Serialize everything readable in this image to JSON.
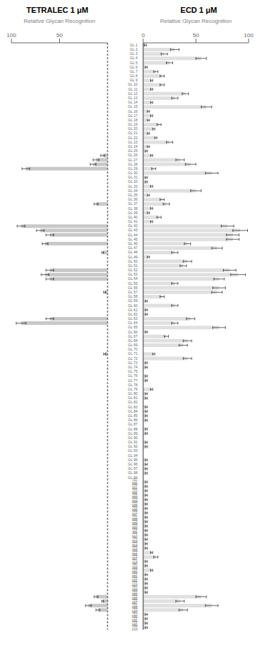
{
  "chart_data": [
    {
      "type": "bar",
      "orientation": "horizontal",
      "title": "TETRALEC 1 μM",
      "xlabel": "Relative Glycan Recognition",
      "tick_labels": "x",
      "categories": [
        "GL 1",
        "GL 2",
        "GL 3",
        "GL 4",
        "GL 5",
        "GL 6",
        "GL 7",
        "GL 8",
        "GL 9",
        "GL 10",
        "GL 11",
        "GL 12",
        "GL 13",
        "GL 14",
        "GL 15",
        "GL 16",
        "GL 17",
        "GL 18",
        "GL 19",
        "GL 20",
        "GL 21",
        "GL 22",
        "GL 23",
        "GL 24",
        "GL 25",
        "GL 26",
        "GL 27",
        "GL 28",
        "GL 29",
        "GL 30",
        "GL 31",
        "GL 32",
        "GL 33",
        "GL 34",
        "GL 35",
        "GL 36",
        "GL 37",
        "GL 38",
        "GL 39",
        "GL 40",
        "GL 41",
        "GL 42",
        "GL 43",
        "GL 44",
        "GL 45",
        "GL 46",
        "GL 47",
        "GL 48",
        "GL 49",
        "GL 50",
        "GL 51",
        "GL 52",
        "GL 53",
        "GL 54",
        "GL 55",
        "GL 56",
        "GL 57",
        "GL 58",
        "GL 59",
        "GL 60",
        "GL 61",
        "GL 62",
        "GL 63",
        "GL 64",
        "GL 65",
        "GL 66",
        "GL 67",
        "GL 68",
        "GL 69",
        "GL 70",
        "GL 71",
        "GL 72",
        "GL 73",
        "GL 74",
        "GL 75",
        "GL 76",
        "GL 77",
        "GL 78",
        "GL 79",
        "GL 80",
        "GL 81",
        "GL 82",
        "GL 83",
        "GL 84",
        "GL 85",
        "GL 86",
        "GL 87",
        "GL 88",
        "GL 89",
        "GL 90",
        "GL 91",
        "GL 92",
        "GL 93",
        "GL 94",
        "GL 95",
        "GL 96",
        "GL 97",
        "GL 98",
        "GL 99",
        "GL 100",
        "GL 101",
        "GL 102",
        "GL 103",
        "GL 104",
        "GL 105",
        "GL 106",
        "GL 107",
        "GL 108",
        "GL 109",
        "GL 110",
        "GL 111",
        "GL 112",
        "GL 113",
        "GL 114",
        "GL 115",
        "GL 116",
        "GL 117",
        "GL 118",
        "GL 119",
        "GL 120",
        "GL 121",
        "GL 122",
        "GL 123",
        "GL 124",
        "GL 125",
        "GL 126",
        "GL 127",
        "GL 128",
        "GL 129",
        "GL 130",
        "GL 131",
        "GL 132",
        "GL 133"
      ],
      "values": [
        0,
        0,
        0,
        0,
        0,
        0,
        0,
        0,
        0,
        0,
        0,
        0,
        0,
        0,
        0,
        0,
        0,
        0,
        0,
        0,
        0,
        0,
        0,
        0,
        0,
        5,
        12,
        15,
        85,
        0,
        0,
        0,
        0,
        0,
        0,
        0,
        12,
        0,
        0,
        0,
        0,
        90,
        70,
        60,
        0,
        65,
        0,
        5,
        0,
        0,
        0,
        60,
        65,
        60,
        0,
        0,
        3,
        0,
        0,
        0,
        0,
        0,
        60,
        90,
        0,
        0,
        0,
        0,
        0,
        0,
        3,
        0,
        0,
        0,
        0,
        0,
        0,
        0,
        0,
        0,
        0,
        0,
        0,
        0,
        0,
        0,
        0,
        0,
        0,
        0,
        0,
        0,
        0,
        0,
        0,
        0,
        0,
        0,
        0,
        0,
        0,
        0,
        0,
        0,
        0,
        0,
        0,
        0,
        0,
        0,
        0,
        0,
        0,
        0,
        0,
        0,
        0,
        0,
        0,
        0,
        0,
        0,
        0,
        0,
        0,
        12,
        5,
        20,
        10,
        0,
        0,
        0,
        0
      ],
      "errors": [
        0,
        0,
        0,
        0,
        0,
        0,
        0,
        0,
        0,
        0,
        0,
        0,
        0,
        0,
        0,
        0,
        0,
        0,
        0,
        0,
        0,
        0,
        0,
        0,
        0,
        2,
        3,
        3,
        4,
        0,
        0,
        0,
        0,
        0,
        0,
        0,
        2,
        0,
        0,
        0,
        0,
        4,
        4,
        4,
        0,
        3,
        0,
        1,
        0,
        0,
        0,
        4,
        4,
        4,
        0,
        0,
        1,
        0,
        0,
        0,
        0,
        0,
        4,
        5,
        0,
        0,
        0,
        0,
        0,
        0,
        1,
        0,
        0,
        0,
        0,
        0,
        0,
        0,
        0,
        0,
        0,
        0,
        0,
        0,
        0,
        0,
        0,
        0,
        0,
        0,
        0,
        0,
        0,
        0,
        0,
        0,
        0,
        0,
        0,
        0,
        0,
        0,
        0,
        0,
        0,
        0,
        0,
        0,
        0,
        0,
        0,
        0,
        0,
        0,
        0,
        0,
        0,
        0,
        0,
        0,
        0,
        0,
        0,
        0,
        0,
        2,
        1,
        3,
        2,
        0,
        0,
        0,
        0
      ],
      "color": "#c8c8c8",
      "xlim": [
        100,
        0
      ],
      "xticks": [
        100,
        50
      ]
    },
    {
      "type": "bar",
      "orientation": "horizontal",
      "title": "ECD 1 μM",
      "xlabel": "Relative Glycan Recognition",
      "categories": [
        "GL 1",
        "GL 2",
        "GL 3",
        "GL 4",
        "GL 5",
        "GL 6",
        "GL 7",
        "GL 8",
        "GL 9",
        "GL 10",
        "GL 11",
        "GL 12",
        "GL 13",
        "GL 14",
        "GL 15",
        "GL 16",
        "GL 17",
        "GL 18",
        "GL 19",
        "GL 20",
        "GL 21",
        "GL 22",
        "GL 23",
        "GL 24",
        "GL 25",
        "GL 26",
        "GL 27",
        "GL 28",
        "GL 29",
        "GL 30",
        "GL 31",
        "GL 32",
        "GL 33",
        "GL 34",
        "GL 35",
        "GL 36",
        "GL 37",
        "GL 38",
        "GL 39",
        "GL 40",
        "GL 41",
        "GL 42",
        "GL 43",
        "GL 44",
        "GL 45",
        "GL 46",
        "GL 47",
        "GL 48",
        "GL 49",
        "GL 50",
        "GL 51",
        "GL 52",
        "GL 53",
        "GL 54",
        "GL 55",
        "GL 56",
        "GL 57",
        "GL 58",
        "GL 59",
        "GL 60",
        "GL 61",
        "GL 62",
        "GL 63",
        "GL 64",
        "GL 65",
        "GL 66",
        "GL 67",
        "GL 68",
        "GL 69",
        "GL 70",
        "GL 71",
        "GL 72",
        "GL 73",
        "GL 74",
        "GL 75",
        "GL 76",
        "GL 77",
        "GL 78",
        "GL 79",
        "GL 80",
        "GL 81",
        "GL 82",
        "GL 83",
        "GL 84",
        "GL 85",
        "GL 86",
        "GL 87",
        "GL 88",
        "GL 89",
        "GL 90",
        "GL 91",
        "GL 92",
        "GL 93",
        "GL 94",
        "GL 95",
        "GL 96",
        "GL 97",
        "GL 98",
        "GL 99",
        "GL 100",
        "GL 101",
        "GL 102",
        "GL 103",
        "GL 104",
        "GL 105",
        "GL 106",
        "GL 107",
        "GL 108",
        "GL 109",
        "GL 110",
        "GL 111",
        "GL 112",
        "GL 113",
        "GL 114",
        "GL 115",
        "GL 116",
        "GL 117",
        "GL 118",
        "GL 119",
        "GL 120",
        "GL 121",
        "GL 122",
        "GL 123",
        "GL 124",
        "GL 125",
        "GL 126",
        "GL 127",
        "GL 128",
        "GL 129",
        "GL 130",
        "GL 131",
        "GL 132",
        "GL 133"
      ],
      "values": [
        2,
        30,
        20,
        55,
        25,
        3,
        12,
        18,
        8,
        18,
        8,
        40,
        30,
        8,
        60,
        5,
        8,
        5,
        15,
        10,
        5,
        12,
        25,
        5,
        3,
        8,
        35,
        45,
        10,
        65,
        3,
        3,
        8,
        50,
        5,
        18,
        22,
        8,
        5,
        15,
        8,
        80,
        92,
        85,
        85,
        42,
        70,
        30,
        5,
        42,
        38,
        82,
        90,
        72,
        30,
        72,
        70,
        18,
        3,
        30,
        3,
        3,
        45,
        30,
        72,
        3,
        22,
        42,
        38,
        0,
        10,
        42,
        3,
        3,
        0,
        3,
        3,
        0,
        8,
        3,
        3,
        0,
        3,
        3,
        3,
        3,
        0,
        3,
        3,
        0,
        3,
        3,
        0,
        0,
        3,
        3,
        3,
        3,
        0,
        3,
        3,
        3,
        3,
        3,
        3,
        3,
        3,
        3,
        3,
        3,
        3,
        3,
        3,
        3,
        3,
        8,
        12,
        3,
        3,
        8,
        3,
        3,
        3,
        3,
        3,
        55,
        35,
        65,
        38,
        3,
        3,
        3,
        3
      ],
      "errors": [
        1,
        4,
        3,
        5,
        3,
        1,
        2,
        2,
        1,
        2,
        1,
        3,
        3,
        1,
        5,
        1,
        1,
        1,
        2,
        1,
        1,
        1,
        3,
        1,
        1,
        1,
        4,
        5,
        2,
        6,
        1,
        1,
        1,
        5,
        1,
        2,
        3,
        1,
        1,
        2,
        1,
        6,
        7,
        6,
        6,
        3,
        5,
        3,
        1,
        4,
        3,
        6,
        7,
        5,
        3,
        6,
        5,
        2,
        1,
        3,
        1,
        1,
        4,
        3,
        6,
        1,
        2,
        4,
        4,
        0,
        1,
        4,
        1,
        1,
        0,
        1,
        1,
        0,
        1,
        1,
        1,
        0,
        1,
        1,
        1,
        1,
        0,
        1,
        1,
        0,
        1,
        1,
        0,
        0,
        1,
        1,
        1,
        1,
        0,
        1,
        1,
        1,
        1,
        1,
        1,
        1,
        1,
        1,
        1,
        1,
        1,
        1,
        1,
        1,
        1,
        1,
        2,
        1,
        1,
        1,
        1,
        1,
        1,
        1,
        1,
        5,
        4,
        6,
        4,
        1,
        1,
        1,
        1
      ],
      "color": "#e0e0e0",
      "xlim": [
        0,
        100
      ],
      "xticks": [
        0,
        50,
        100
      ]
    }
  ]
}
